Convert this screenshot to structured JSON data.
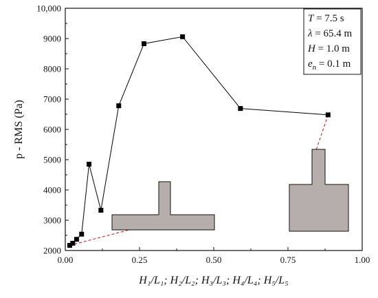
{
  "chart_data": {
    "type": "line",
    "xlabel": "H₁/L₁; H₂/L₂; H₃/L₃; H₄/L₄; H₅/L₅",
    "ylabel": "p - RMS (Pa)",
    "xlim": [
      0,
      1.0
    ],
    "ylim": [
      2000,
      10000
    ],
    "x_ticks": [
      0,
      0.25,
      0.5,
      0.75,
      1.0
    ],
    "x_tick_labels": [
      "0.00",
      "0.25",
      "0.50",
      "0.75",
      "1.00"
    ],
    "y_ticks": [
      2000,
      3000,
      4000,
      5000,
      6000,
      7000,
      8000,
      9000,
      10000
    ],
    "y_tick_labels": [
      "2000",
      "3000",
      "4000",
      "5000",
      "6000",
      "7000",
      "8000",
      "9000",
      "10,000"
    ],
    "grid": false,
    "series": [
      {
        "x": [
          0.015,
          0.025,
          0.038,
          0.055,
          0.08,
          0.12,
          0.18,
          0.265,
          0.395,
          0.59,
          0.885
        ],
        "y": [
          2170,
          2240,
          2370,
          2540,
          4850,
          3330,
          6780,
          8830,
          9060,
          6690,
          6480
        ]
      }
    ],
    "legend": {
      "placement": "top-right",
      "lines": [
        {
          "sym": "T",
          "rest": " = 7.5 s"
        },
        {
          "sym": "λ",
          "rest": " = 65.4 m"
        },
        {
          "sym": "H",
          "rest": " = 1.0 m"
        },
        {
          "sym": "e",
          "sub": "n",
          "rest": " = 0.1 m"
        }
      ]
    },
    "annotations": [
      {
        "shape": "wide-low-section",
        "points_to": {
          "x": 0.015,
          "y": 2170
        }
      },
      {
        "shape": "tall-narrow-section",
        "points_to": {
          "x": 0.885,
          "y": 6480
        }
      }
    ]
  },
  "colors": {
    "line": "#000000",
    "marker": "#000000",
    "shape_fill": "#b5aeac",
    "shape_stroke": "#111111",
    "leader": "#d32f2f"
  }
}
